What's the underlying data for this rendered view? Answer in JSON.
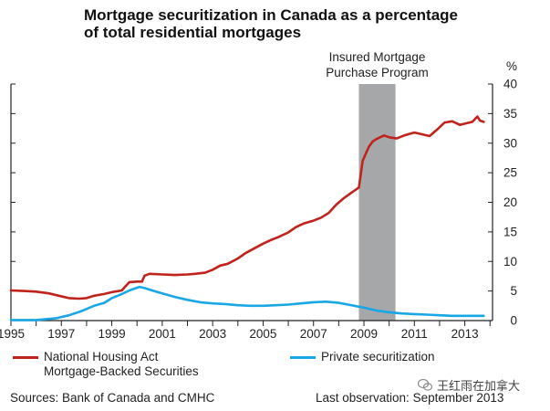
{
  "title_line1": "Mortgage securitization in Canada as a percentage",
  "title_line2": "of total residential mortgages",
  "source": "Sources: Bank of Canada and CMHC",
  "last_observation": "Last observation: September 2013",
  "watermark": "王红雨在加拿大",
  "colors": {
    "nha_mbs": "#c0221c",
    "private": "#1aa7e6",
    "shade": "#a6a7a9",
    "axis": "#222222"
  },
  "chart_data": {
    "type": "line",
    "title": "Mortgage securitization in Canada as a percentage of total residential mortgages",
    "xlim": [
      1995,
      2014.1
    ],
    "ylim": [
      0,
      40
    ],
    "y_unit": "%",
    "x_ticks": [
      1995,
      1997,
      1999,
      2001,
      2003,
      2005,
      2007,
      2009,
      2011,
      2013
    ],
    "y_ticks": [
      0,
      5,
      10,
      15,
      20,
      25,
      30,
      35,
      40
    ],
    "legend_position": "bottom",
    "grid": false,
    "shaded_region": {
      "label_line1": "Insured Mortgage",
      "label_line2": "Purchase Program",
      "x_start": 2008.8,
      "x_end": 2010.25
    },
    "series": [
      {
        "name": "National Housing Act Mortgage-Backed Securities",
        "legend_line1": "National Housing Act",
        "legend_line2": "Mortgage-Backed Securities",
        "x": [
          1995.0,
          1995.5,
          1996.0,
          1996.5,
          1996.9,
          1997.3,
          1997.7,
          1998.0,
          1998.3,
          1998.7,
          1999.0,
          1999.4,
          1999.5,
          1999.7,
          2000.0,
          2000.2,
          2000.3,
          2000.5,
          2001.0,
          2001.5,
          2002.0,
          2002.3,
          2002.7,
          2003.0,
          2003.3,
          2003.6,
          2004.0,
          2004.3,
          2004.6,
          2005.0,
          2005.3,
          2005.6,
          2006.0,
          2006.3,
          2006.6,
          2007.0,
          2007.3,
          2007.6,
          2007.9,
          2008.2,
          2008.5,
          2008.8,
          2008.95,
          2009.1,
          2009.2,
          2009.35,
          2009.5,
          2009.8,
          2010.0,
          2010.3,
          2010.6,
          2011.0,
          2011.3,
          2011.6,
          2011.9,
          2012.2,
          2012.5,
          2012.8,
          2013.0,
          2013.3,
          2013.5,
          2013.6,
          2013.75
        ],
        "values": [
          5.1,
          5.0,
          4.9,
          4.6,
          4.2,
          3.8,
          3.7,
          3.8,
          4.2,
          4.5,
          4.8,
          5.1,
          5.6,
          6.5,
          6.6,
          6.6,
          7.6,
          7.9,
          7.8,
          7.7,
          7.8,
          7.9,
          8.1,
          8.6,
          9.3,
          9.6,
          10.5,
          11.4,
          12.1,
          13.0,
          13.6,
          14.1,
          14.9,
          15.8,
          16.4,
          16.9,
          17.4,
          18.2,
          19.6,
          20.7,
          21.6,
          22.5,
          27.0,
          28.5,
          29.4,
          30.3,
          30.7,
          31.3,
          31.0,
          30.8,
          31.3,
          31.8,
          31.5,
          31.2,
          32.3,
          33.5,
          33.7,
          33.1,
          33.3,
          33.6,
          34.5,
          33.8,
          33.6
        ]
      },
      {
        "name": "Private securitization",
        "legend_line1": "Private securitization",
        "x": [
          1995.0,
          1996.0,
          1996.8,
          1997.3,
          1997.8,
          1998.3,
          1998.7,
          1999.0,
          1999.4,
          1999.7,
          1999.9,
          2000.1,
          2000.3,
          2000.6,
          2001.0,
          2001.5,
          2002.0,
          2002.5,
          2003.0,
          2003.5,
          2004.0,
          2004.5,
          2005.0,
          2005.5,
          2006.0,
          2006.5,
          2007.0,
          2007.5,
          2008.0,
          2008.5,
          2009.0,
          2009.5,
          2010.0,
          2010.5,
          2011.0,
          2011.5,
          2012.0,
          2012.5,
          2013.0,
          2013.5,
          2013.75
        ],
        "values": [
          0.1,
          0.1,
          0.4,
          0.9,
          1.6,
          2.5,
          3.0,
          3.8,
          4.5,
          5.1,
          5.4,
          5.7,
          5.5,
          5.1,
          4.6,
          4.0,
          3.5,
          3.1,
          2.9,
          2.8,
          2.6,
          2.5,
          2.5,
          2.6,
          2.7,
          2.9,
          3.1,
          3.2,
          3.0,
          2.6,
          2.2,
          1.7,
          1.4,
          1.2,
          1.1,
          1.0,
          0.9,
          0.8,
          0.8,
          0.8,
          0.8
        ]
      }
    ]
  }
}
